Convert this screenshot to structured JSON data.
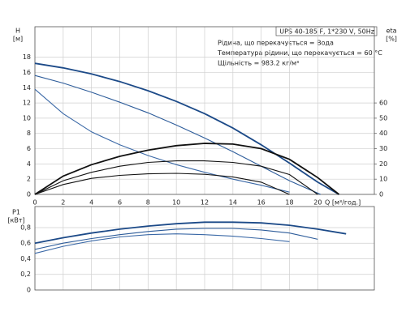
{
  "chart_data": [
    {
      "type": "line",
      "title": "UPS 40-185 F, 1*230 V, 50Hz",
      "annotations": [
        "Рідина, що перекачується = Вода",
        "Температура рідини, що перекачується = 60 °C",
        "Щільність = 983.2 кг/м³"
      ],
      "ylabel": "H",
      "ylabel_unit": "[м]",
      "y2label": "eta",
      "y2label_unit": "[%]",
      "xlabel": "Q [м³/год.]",
      "xlim": [
        0,
        24
      ],
      "xticks": [
        0,
        2,
        4,
        6,
        8,
        10,
        12,
        14,
        16,
        18,
        20
      ],
      "ylim": [
        0,
        22
      ],
      "yticks": [
        0,
        2,
        4,
        6,
        8,
        10,
        12,
        14,
        16,
        18
      ],
      "y2lim": [
        0,
        110
      ],
      "y2ticks": [
        0,
        10,
        20,
        30,
        40,
        50,
        60
      ],
      "grid": true,
      "series": [
        {
          "color": "#1c4a88",
          "x": [
            0,
            2,
            4,
            6,
            8,
            10,
            12,
            14,
            16,
            18,
            20,
            21.5
          ],
          "values": [
            17.2,
            16.6,
            15.8,
            14.8,
            13.6,
            12.2,
            10.6,
            8.7,
            6.5,
            4.1,
            1.6,
            0
          ]
        },
        {
          "color": "#2d5c9a",
          "x": [
            0,
            2,
            4,
            6,
            8,
            10,
            12,
            14,
            16,
            18,
            20.2
          ],
          "values": [
            15.6,
            14.6,
            13.4,
            12.1,
            10.7,
            9.1,
            7.4,
            5.6,
            3.7,
            1.8,
            0
          ]
        },
        {
          "color": "#3a68a6",
          "x": [
            0,
            2,
            4,
            6,
            8,
            10,
            12,
            14,
            16,
            18
          ],
          "values": [
            13.8,
            10.6,
            8.2,
            6.5,
            5.1,
            3.9,
            2.9,
            2.0,
            1.2,
            0.3
          ]
        },
        {
          "color": "#111111",
          "axis": "y2",
          "x": [
            0,
            2,
            4,
            6,
            8,
            10,
            12,
            14,
            16,
            18,
            20,
            21.5
          ],
          "values": [
            0,
            12,
            19.5,
            25,
            29,
            32,
            33.5,
            33,
            30,
            23,
            11,
            0
          ]
        },
        {
          "color": "#111111",
          "axis": "y2",
          "x": [
            0,
            2,
            4,
            6,
            8,
            10,
            12,
            14,
            16,
            18,
            20
          ],
          "values": [
            0,
            9,
            14.5,
            18.5,
            21,
            22,
            22,
            21,
            18.5,
            13,
            0
          ]
        },
        {
          "color": "#111111",
          "axis": "y2",
          "x": [
            0,
            2,
            4,
            6,
            8,
            10,
            12,
            14,
            16,
            18
          ],
          "values": [
            0,
            6.5,
            10.5,
            12.5,
            13.5,
            13.8,
            13.2,
            11.5,
            8,
            0
          ]
        }
      ]
    },
    {
      "type": "line",
      "ylabel": "P1",
      "ylabel_unit": "[кВт]",
      "xlim": [
        0,
        24
      ],
      "ylim": [
        0,
        1.07
      ],
      "yticks": [
        0,
        {
          "value": 0.2,
          "label": "0,2"
        },
        {
          "value": 0.4,
          "label": "0,4"
        },
        {
          "value": 0.6,
          "label": "0,6"
        },
        {
          "value": 0.8,
          "label": "0,8"
        }
      ],
      "grid": true,
      "series": [
        {
          "color": "#1c4a88",
          "x": [
            0,
            2,
            4,
            6,
            8,
            10,
            12,
            14,
            16,
            18,
            20,
            22
          ],
          "values": [
            0.6,
            0.67,
            0.73,
            0.78,
            0.82,
            0.85,
            0.87,
            0.87,
            0.86,
            0.83,
            0.78,
            0.72
          ]
        },
        {
          "color": "#2d5c9a",
          "x": [
            0,
            2,
            4,
            6,
            8,
            10,
            12,
            14,
            16,
            18,
            20
          ],
          "values": [
            0.52,
            0.6,
            0.66,
            0.71,
            0.75,
            0.78,
            0.79,
            0.79,
            0.77,
            0.73,
            0.65
          ]
        },
        {
          "color": "#3a68a6",
          "x": [
            0,
            2,
            4,
            6,
            8,
            10,
            12,
            14,
            16,
            18
          ],
          "values": [
            0.47,
            0.56,
            0.63,
            0.68,
            0.71,
            0.72,
            0.71,
            0.69,
            0.66,
            0.62
          ]
        }
      ]
    }
  ]
}
